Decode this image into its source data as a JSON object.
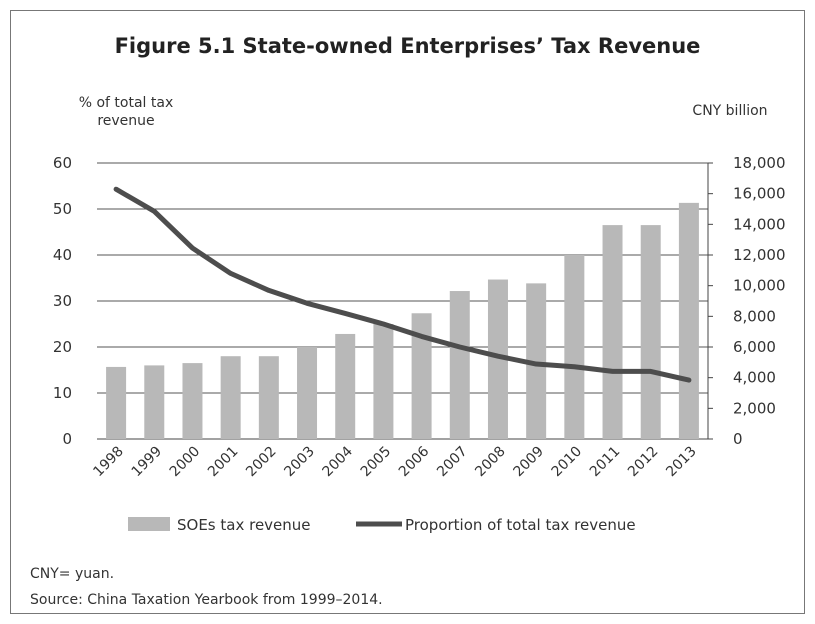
{
  "chart_data": {
    "type": "bar",
    "title": "Figure 5.1  State-owned Enterprises’ Tax Revenue",
    "ylabel_left": [
      "% of total tax",
      "revenue"
    ],
    "ylabel_right": "CNY billion",
    "categories": [
      "1998",
      "1999",
      "2000",
      "2001",
      "2002",
      "2003",
      "2004",
      "2005",
      "2006",
      "2007",
      "2008",
      "2009",
      "2010",
      "2011",
      "2012",
      "2013"
    ],
    "y_left": {
      "lim": [
        0,
        60
      ],
      "ticks": [
        "0",
        "10",
        "20",
        "30",
        "40",
        "50",
        "60"
      ]
    },
    "y_right": {
      "lim": [
        0,
        18000
      ],
      "ticks": [
        "0",
        "2,000",
        "4,000",
        "6,000",
        "8,000",
        "10,000",
        "12,000",
        "14,000",
        "16,000",
        "18,000"
      ]
    },
    "grid": true,
    "legend_position": "bottom",
    "series": [
      {
        "name": "SOEs tax revenue",
        "type": "bar",
        "axis": "right",
        "color": "#b8b8b8",
        "values": [
          4700,
          4800,
          4950,
          5400,
          5400,
          6000,
          6850,
          7500,
          8200,
          9650,
          10400,
          10150,
          12000,
          13950,
          13950,
          15400
        ]
      },
      {
        "name": "Proportion of total tax revenue",
        "type": "line",
        "axis": "left",
        "color": "#4d4d4d",
        "values": [
          54.3,
          49.5,
          41.5,
          36.0,
          32.3,
          29.5,
          27.3,
          25.0,
          22.3,
          20.0,
          18.0,
          16.3,
          15.7,
          14.7,
          14.7,
          12.8
        ]
      }
    ]
  },
  "notes": {
    "cny": "CNY= yuan.",
    "source": "Source: China Taxation Yearbook from 1999–2014."
  }
}
